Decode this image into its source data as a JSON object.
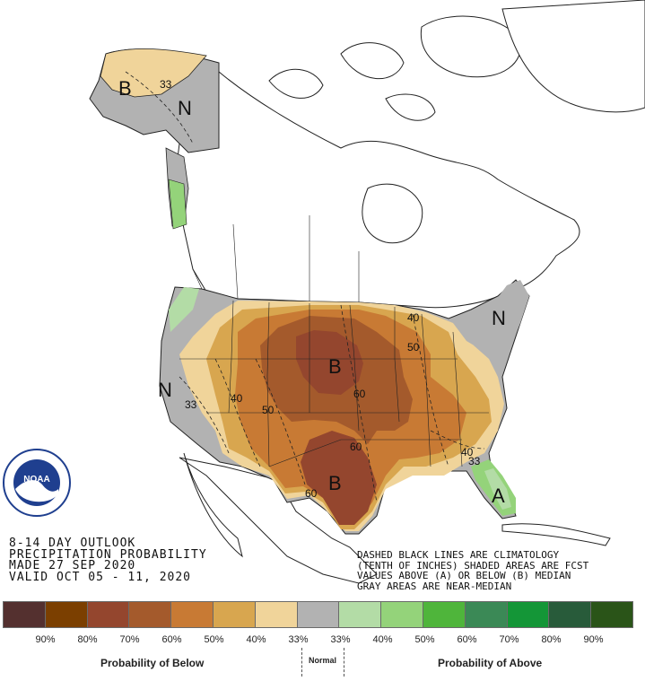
{
  "header": {
    "line1": "8-14 DAY OUTLOOK",
    "line2": "PRECIPITATION PROBABILITY",
    "line3": "MADE  27 SEP 2020",
    "line4": "VALID  OCT 05 - 11, 2020"
  },
  "notes": {
    "line1": "DASHED BLACK LINES ARE CLIMATOLOGY",
    "line2": "(TENTH OF INCHES) SHADED AREAS ARE FCST",
    "line3": "VALUES ABOVE (A) OR BELOW (B) MEDIAN",
    "line4": "GRAY AREAS ARE NEAR-MEDIAN"
  },
  "map": {
    "markers": [
      {
        "id": "ak-b",
        "text": "B"
      },
      {
        "id": "ak-n",
        "text": "N"
      },
      {
        "id": "west-n",
        "text": "N"
      },
      {
        "id": "plains-b",
        "text": "B"
      },
      {
        "id": "texas-b",
        "text": "B"
      },
      {
        "id": "ne-n",
        "text": "N"
      },
      {
        "id": "fl-a",
        "text": "A"
      }
    ],
    "contour_labels": [
      {
        "id": "ak-33",
        "text": "33"
      },
      {
        "id": "w-33",
        "text": "33"
      },
      {
        "id": "w-40",
        "text": "40"
      },
      {
        "id": "c-50",
        "text": "50"
      },
      {
        "id": "c-60a",
        "text": "60"
      },
      {
        "id": "c-60b",
        "text": "60"
      },
      {
        "id": "tx-60",
        "text": "60"
      },
      {
        "id": "gl-40",
        "text": "40"
      },
      {
        "id": "gl-50",
        "text": "50"
      },
      {
        "id": "se-40",
        "text": "40"
      },
      {
        "id": "se-33",
        "text": "33"
      }
    ]
  },
  "legend": {
    "swatches": [
      {
        "color": "#54302f"
      },
      {
        "color": "#7b3f00"
      },
      {
        "color": "#94462e"
      },
      {
        "color": "#a45a2c"
      },
      {
        "color": "#c87a34"
      },
      {
        "color": "#d8a64f"
      },
      {
        "color": "#f0d49a"
      },
      {
        "color": "#b2b2b2"
      },
      {
        "color": "#b3dca6"
      },
      {
        "color": "#94d37a"
      },
      {
        "color": "#4fb53b"
      },
      {
        "color": "#3b8956"
      },
      {
        "color": "#149637"
      },
      {
        "color": "#285b3a"
      },
      {
        "color": "#2a5418"
      }
    ],
    "labels": [
      "90%",
      "80%",
      "70%",
      "60%",
      "50%",
      "40%",
      "33%",
      "33%",
      "40%",
      "50%",
      "60%",
      "70%",
      "80%",
      "90%"
    ],
    "below_caption": "Probability of Below",
    "normal_caption": "Normal",
    "above_caption": "Probability of Above"
  },
  "logo": {
    "text": "NOAA"
  }
}
